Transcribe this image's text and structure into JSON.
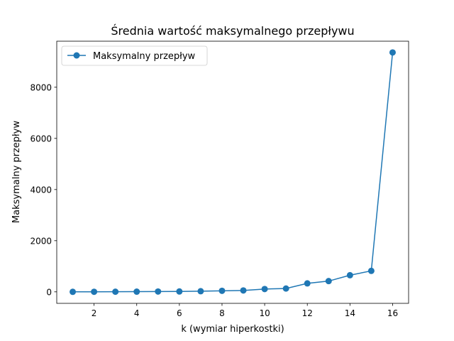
{
  "chart_data": {
    "type": "line",
    "title": "Średnia wartość maksymalnego przepływu",
    "xlabel": "k (wymiar hiperkostki)",
    "ylabel": "Maksymalny przepływ",
    "xlim": [
      0.25,
      16.75
    ],
    "ylim": [
      -450,
      9800
    ],
    "xticks": [
      2,
      4,
      6,
      8,
      10,
      12,
      14,
      16
    ],
    "yticks": [
      0,
      2000,
      4000,
      6000,
      8000
    ],
    "grid": false,
    "legend_position": "upper-left",
    "color": "#1f77b4",
    "series": [
      {
        "name": "Maksymalny przepływ",
        "x": [
          1,
          2,
          3,
          4,
          5,
          6,
          7,
          8,
          9,
          10,
          11,
          12,
          13,
          14,
          15,
          16
        ],
        "y": [
          1,
          3,
          5,
          8,
          12,
          15,
          25,
          40,
          55,
          110,
          130,
          330,
          420,
          650,
          820,
          9360
        ]
      }
    ]
  }
}
